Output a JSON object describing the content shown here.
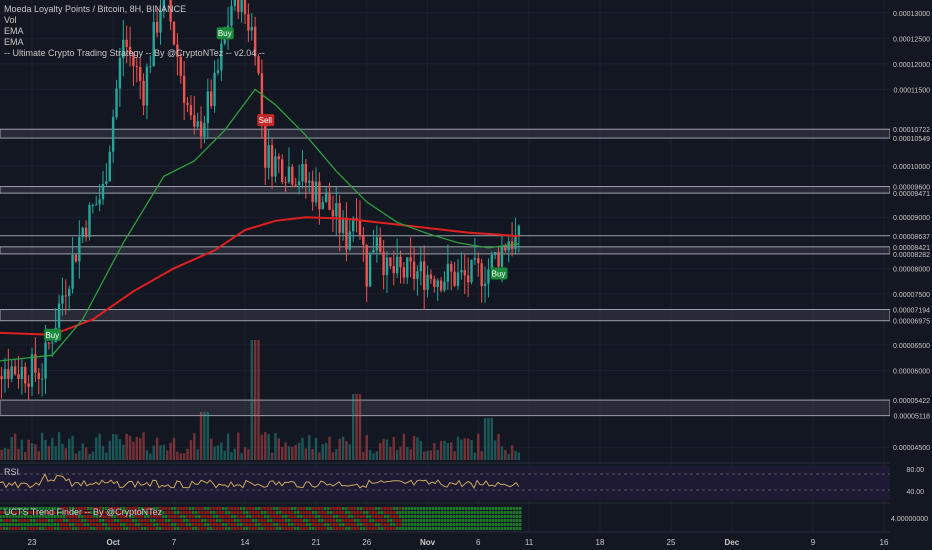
{
  "header": {
    "title": "Moeda Loyalty Points / Bitcoin, 8H, BINANCE",
    "indicators": [
      "Vol",
      "EMA",
      "EMA",
      "-- Ultimate Crypto Trading Strategy -- By @CryptoNTez -- v2.04 --"
    ]
  },
  "panes": {
    "rsi_label": "RSI",
    "ucts_label": "UCTS Trend Finder -- By @CryptoNTez"
  },
  "colors": {
    "background": "#131722",
    "up": "#26a69a",
    "down": "#ef5350",
    "ema_fast": "#2e9e3e",
    "ema_slow": "#e0201e",
    "rsi": "#c9a860",
    "zone": "#3a3d48",
    "buy": "#1b8a3c",
    "sell": "#c62828"
  },
  "chart_data": {
    "type": "candlestick",
    "title": "Moeda Loyalty Points / Bitcoin, 8H, BINANCE",
    "price_axis_ticks": [
      "0.00013000",
      "0.00012500",
      "0.00012000",
      "0.00011500",
      "0.00010722",
      "0.00010549",
      "0.00010000",
      "0.00009600",
      "0.00009471",
      "0.00009000",
      "0.00008637",
      "0.00008421",
      "0.00008282",
      "0.00008000",
      "0.00007500",
      "0.00007194",
      "0.00006975",
      "0.00006500",
      "0.00006000",
      "0.00005422",
      "0.00005118",
      "0.00004500"
    ],
    "price_range": [
      4.25e-05,
      0.0001325
    ],
    "x_tick_labels": [
      "23",
      "Oct",
      "7",
      "14",
      "21",
      "26",
      "Nov",
      "6",
      "11",
      "18",
      "25",
      "Dec",
      "9",
      "16"
    ],
    "zones": [
      {
        "top": 0.00010722,
        "bottom": 0.00010549
      },
      {
        "top": 9.6e-05,
        "bottom": 9.471e-05
      },
      {
        "top": 8.421e-05,
        "bottom": 8.282e-05
      },
      {
        "top": 7.194e-05,
        "bottom": 6.975e-05
      },
      {
        "top": 5.422e-05,
        "bottom": 5.118e-05
      }
    ],
    "reference_line": 8.637e-05,
    "signals": [
      {
        "label": "Buy",
        "date": "Sep 25",
        "price": 6.7e-05
      },
      {
        "label": "Buy",
        "date": "Oct 12",
        "price": 0.000126
      },
      {
        "label": "Sell",
        "date": "Oct 16",
        "price": 0.000109
      },
      {
        "label": "Buy",
        "date": "Nov 8",
        "price": 7.9e-05
      }
    ],
    "ema_fast": [
      {
        "date": "Sep 18",
        "value": 6.15e-05
      },
      {
        "date": "Sep 25",
        "value": 6.3e-05
      },
      {
        "date": "Sep 28",
        "value": 7e-05
      },
      {
        "date": "Oct 2",
        "value": 8.5e-05
      },
      {
        "date": "Oct 6",
        "value": 9.8e-05
      },
      {
        "date": "Oct 9",
        "value": 0.000101
      },
      {
        "date": "Oct 12",
        "value": 0.000107
      },
      {
        "date": "Oct 15",
        "value": 0.000115
      },
      {
        "date": "Oct 17",
        "value": 0.000112
      },
      {
        "date": "Oct 20",
        "value": 0.000106
      },
      {
        "date": "Oct 23",
        "value": 9.9e-05
      },
      {
        "date": "Oct 26",
        "value": 9.3e-05
      },
      {
        "date": "Oct 29",
        "value": 8.9e-05
      },
      {
        "date": "Nov 1",
        "value": 8.68e-05
      },
      {
        "date": "Nov 4",
        "value": 8.5e-05
      },
      {
        "date": "Nov 7",
        "value": 8.4e-05
      },
      {
        "date": "Nov 10",
        "value": 8.48e-05
      }
    ],
    "ema_slow": [
      {
        "date": "Sep 18",
        "value": 6.75e-05
      },
      {
        "date": "Sep 25",
        "value": 6.7e-05
      },
      {
        "date": "Sep 29",
        "value": 7e-05
      },
      {
        "date": "Oct 3",
        "value": 7.55e-05
      },
      {
        "date": "Oct 7",
        "value": 8e-05
      },
      {
        "date": "Oct 11",
        "value": 8.35e-05
      },
      {
        "date": "Oct 14",
        "value": 8.75e-05
      },
      {
        "date": "Oct 17",
        "value": 8.93e-05
      },
      {
        "date": "Oct 20",
        "value": 9e-05
      },
      {
        "date": "Oct 24",
        "value": 8.97e-05
      },
      {
        "date": "Oct 28",
        "value": 8.88e-05
      },
      {
        "date": "Nov 1",
        "value": 8.79e-05
      },
      {
        "date": "Nov 5",
        "value": 8.7e-05
      },
      {
        "date": "Nov 10",
        "value": 8.63e-05
      }
    ],
    "price_path": [
      {
        "date": "Sep 18",
        "value": 6.2e-05
      },
      {
        "date": "Sep 22",
        "value": 6e-05
      },
      {
        "date": "Sep 24",
        "value": 6e-05
      },
      {
        "date": "Sep 26",
        "value": 7.5e-05
      },
      {
        "date": "Sep 28",
        "value": 8.8e-05
      },
      {
        "date": "Sep 30",
        "value": 9.5e-05
      },
      {
        "date": "Oct 2",
        "value": 0.000125
      },
      {
        "date": "Oct 4",
        "value": 0.000115
      },
      {
        "date": "Oct 6",
        "value": 0.000135
      },
      {
        "date": "Oct 9",
        "value": 0.000105
      },
      {
        "date": "Oct 11",
        "value": 0.000115
      },
      {
        "date": "Oct 13",
        "value": 0.000135
      },
      {
        "date": "Oct 15",
        "value": 0.000125
      },
      {
        "date": "Oct 16",
        "value": 0.000102
      },
      {
        "date": "Oct 19",
        "value": 9.9e-05
      },
      {
        "date": "Oct 22",
        "value": 9.3e-05
      },
      {
        "date": "Oct 24",
        "value": 8.6e-05
      },
      {
        "date": "Oct 25",
        "value": 9.3e-05
      },
      {
        "date": "Oct 26",
        "value": 7.9e-05
      },
      {
        "date": "Oct 27",
        "value": 8.8e-05
      },
      {
        "date": "Oct 28",
        "value": 7.9e-05
      },
      {
        "date": "Nov 1",
        "value": 7.9e-05
      },
      {
        "date": "Nov 5",
        "value": 7.8e-05
      },
      {
        "date": "Nov 7",
        "value": 8e-05
      },
      {
        "date": "Nov 9",
        "value": 8.6e-05
      },
      {
        "date": "Nov 10",
        "value": 8.5e-05
      }
    ],
    "volume_spikes": [
      {
        "date": "Oct 15",
        "value": 1.0
      },
      {
        "date": "Oct 25",
        "value": 0.55
      },
      {
        "date": "Nov 7",
        "value": 0.35
      },
      {
        "date": "Oct 10",
        "value": 0.4
      }
    ],
    "rsi_axis_ticks": [
      "80.00",
      "40.00"
    ],
    "ucts_axis_ticks": [
      "4.00000000"
    ]
  }
}
